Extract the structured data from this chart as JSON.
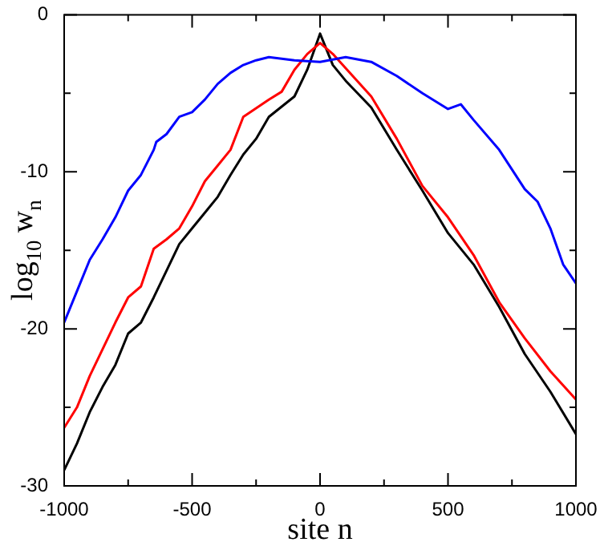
{
  "chart_data": {
    "type": "line",
    "xlabel": "site n",
    "ylabel": "log$_{10}$ w$_{n}$",
    "marker": "none",
    "line_style": "solid",
    "grid": false,
    "legend": false,
    "xlim": [
      -1000,
      1000
    ],
    "ylim": [
      -30,
      0
    ],
    "xticks": [
      -1000,
      {
        "value": -750,
        "label": null
      },
      -500,
      {
        "value": -250,
        "label": null
      },
      0,
      {
        "value": 250,
        "label": null
      },
      500,
      {
        "value": 750,
        "label": null
      },
      1000
    ],
    "yticks": [
      -30,
      {
        "value": -25,
        "label": null
      },
      -20,
      {
        "value": -15,
        "label": null
      },
      -10,
      {
        "value": -5,
        "label": null
      },
      0
    ],
    "series": [
      {
        "color": "#0000ff",
        "x": [
          -1000,
          -950,
          -900,
          -850,
          -800,
          -750,
          -700,
          -650,
          -640,
          -600,
          -550,
          -500,
          -450,
          -400,
          -350,
          -300,
          -250,
          -200,
          -100,
          0,
          100,
          200,
          300,
          400,
          500,
          550,
          600,
          700,
          800,
          850,
          900,
          950,
          1000
        ],
        "values": [
          -19.6,
          -17.6,
          -15.6,
          -14.3,
          -12.9,
          -11.2,
          -10.2,
          -8.6,
          -8.1,
          -7.6,
          -6.5,
          -6.2,
          -5.4,
          -4.4,
          -3.7,
          -3.2,
          -2.9,
          -2.7,
          -2.9,
          -3.0,
          -2.7,
          -3.0,
          -3.9,
          -5.0,
          -6.0,
          -5.7,
          -6.7,
          -8.6,
          -11.1,
          -11.9,
          -13.6,
          -15.9,
          -17.1
        ]
      },
      {
        "color": "#ff0000",
        "x": [
          -1000,
          -950,
          -900,
          -850,
          -800,
          -750,
          -700,
          -650,
          -600,
          -550,
          -500,
          -450,
          -400,
          -350,
          -300,
          -200,
          -150,
          -100,
          -50,
          0,
          50,
          100,
          200,
          300,
          400,
          500,
          600,
          700,
          800,
          900,
          1000
        ],
        "values": [
          -26.3,
          -25,
          -23,
          -21.3,
          -19.6,
          -18,
          -17.3,
          -14.9,
          -14.3,
          -13.6,
          -12.2,
          -10.6,
          -9.6,
          -8.6,
          -6.5,
          -5.4,
          -4.9,
          -3.5,
          -2.5,
          -1.8,
          -2.5,
          -3.4,
          -5.2,
          -7.9,
          -10.9,
          -12.9,
          -15.3,
          -18.3,
          -20.6,
          -22.7,
          -24.5
        ]
      },
      {
        "color": "#000000",
        "x": [
          -1000,
          -950,
          -900,
          -850,
          -800,
          -750,
          -700,
          -650,
          -600,
          -550,
          -500,
          -450,
          -400,
          -350,
          -300,
          -250,
          -200,
          -100,
          -50,
          0,
          50,
          100,
          200,
          300,
          400,
          500,
          600,
          700,
          800,
          900,
          1000
        ],
        "values": [
          -29,
          -27.3,
          -25.3,
          -23.7,
          -22.3,
          -20.3,
          -19.6,
          -18,
          -16.3,
          -14.6,
          -13.6,
          -12.6,
          -11.6,
          -10.2,
          -8.9,
          -7.9,
          -6.5,
          -5.2,
          -3.5,
          -1.2,
          -3.2,
          -4.2,
          -5.9,
          -8.6,
          -11.2,
          -13.9,
          -15.9,
          -18.6,
          -21.6,
          -24,
          -26.7
        ]
      }
    ]
  }
}
